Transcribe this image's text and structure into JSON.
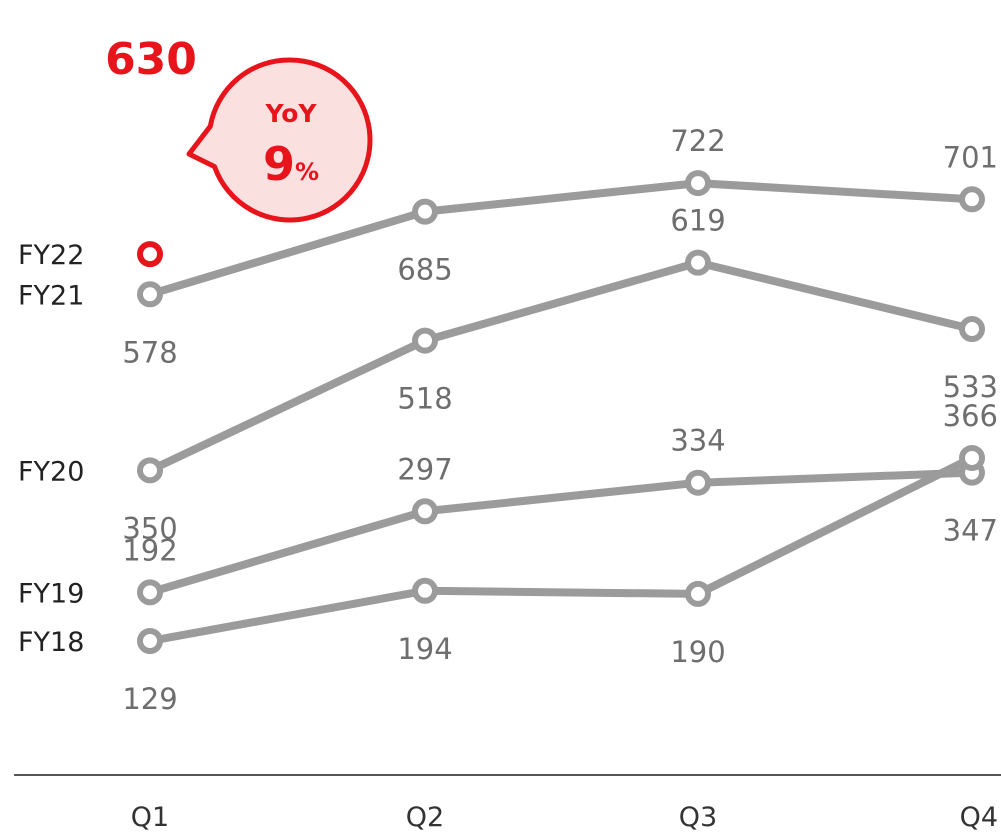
{
  "chart_data": {
    "type": "line",
    "categories": [
      "Q1",
      "Q2",
      "Q3",
      "Q4"
    ],
    "series": [
      {
        "name": "FY22",
        "values": [
          630,
          null,
          null,
          null
        ]
      },
      {
        "name": "FY21",
        "values": [
          578,
          685,
          722,
          701
        ]
      },
      {
        "name": "FY20",
        "values": [
          350,
          518,
          619,
          533
        ]
      },
      {
        "name": "FY19",
        "values": [
          192,
          297,
          334,
          347
        ]
      },
      {
        "name": "FY18",
        "values": [
          129,
          194,
          190,
          366
        ]
      }
    ],
    "callout": {
      "title": "YoY",
      "value": "9",
      "unit": "%"
    },
    "highlight_value": "630",
    "colors": {
      "line": "#9b9b9b",
      "highlight": "#e8141c",
      "callout_fill": "#fbe0e0",
      "axis": "#555555"
    }
  }
}
